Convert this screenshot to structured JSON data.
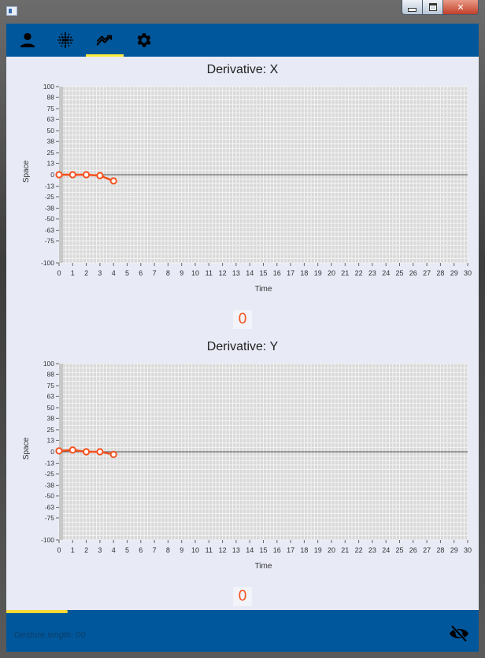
{
  "window": {
    "title": ""
  },
  "toolbar": {
    "tabs": [
      {
        "name": "profile",
        "icon": "person-icon"
      },
      {
        "name": "sensor",
        "icon": "dot-grid-icon"
      },
      {
        "name": "charts",
        "icon": "trending-icon",
        "active": true
      },
      {
        "name": "settings",
        "icon": "gear-icon"
      }
    ]
  },
  "charts": [
    {
      "title": "Derivative: X",
      "counter": "0",
      "chart_data": {
        "type": "line",
        "title": "Derivative: X",
        "xlabel": "Time",
        "ylabel": "Space",
        "xlim": [
          0,
          30
        ],
        "ylim": [
          -100,
          100
        ],
        "x_ticks": [
          0,
          1,
          2,
          3,
          4,
          5,
          6,
          7,
          8,
          9,
          10,
          11,
          12,
          13,
          14,
          15,
          16,
          17,
          18,
          19,
          20,
          21,
          22,
          23,
          24,
          25,
          26,
          27,
          28,
          29,
          30
        ],
        "y_ticks": [
          100,
          88,
          75,
          63,
          50,
          38,
          25,
          13,
          0,
          -13,
          -25,
          -38,
          -50,
          -63,
          -75,
          -100
        ],
        "grid": true,
        "series": [
          {
            "x": [
              0,
              1,
              2,
              3,
              4
            ],
            "y": [
              0,
              0,
              0,
              -1,
              -7
            ],
            "color": "#f4511e"
          }
        ]
      }
    },
    {
      "title": "Derivative: Y",
      "counter": "0",
      "chart_data": {
        "type": "line",
        "title": "Derivative: Y",
        "xlabel": "Time",
        "ylabel": "Space",
        "xlim": [
          0,
          30
        ],
        "ylim": [
          -100,
          100
        ],
        "x_ticks": [
          0,
          1,
          2,
          3,
          4,
          5,
          6,
          7,
          8,
          9,
          10,
          11,
          12,
          13,
          14,
          15,
          16,
          17,
          18,
          19,
          20,
          21,
          22,
          23,
          24,
          25,
          26,
          27,
          28,
          29,
          30
        ],
        "y_ticks": [
          100,
          88,
          75,
          63,
          50,
          38,
          25,
          13,
          0,
          -13,
          -25,
          -38,
          -50,
          -63,
          -75,
          -100
        ],
        "grid": true,
        "series": [
          {
            "x": [
              0,
              1,
              2,
              3,
              4
            ],
            "y": [
              1,
              2,
              0,
              0,
              -3
            ],
            "color": "#f4511e"
          }
        ]
      }
    }
  ],
  "status": {
    "gesture_length_label": "Gesture length: 00",
    "progress_fraction": 0.13,
    "visibility_icon": "eye-off-icon"
  },
  "colors": {
    "primary": "#01579b",
    "accent": "#ffeb3b",
    "series": "#f4511e",
    "chart_background": "#d9d9d9"
  }
}
